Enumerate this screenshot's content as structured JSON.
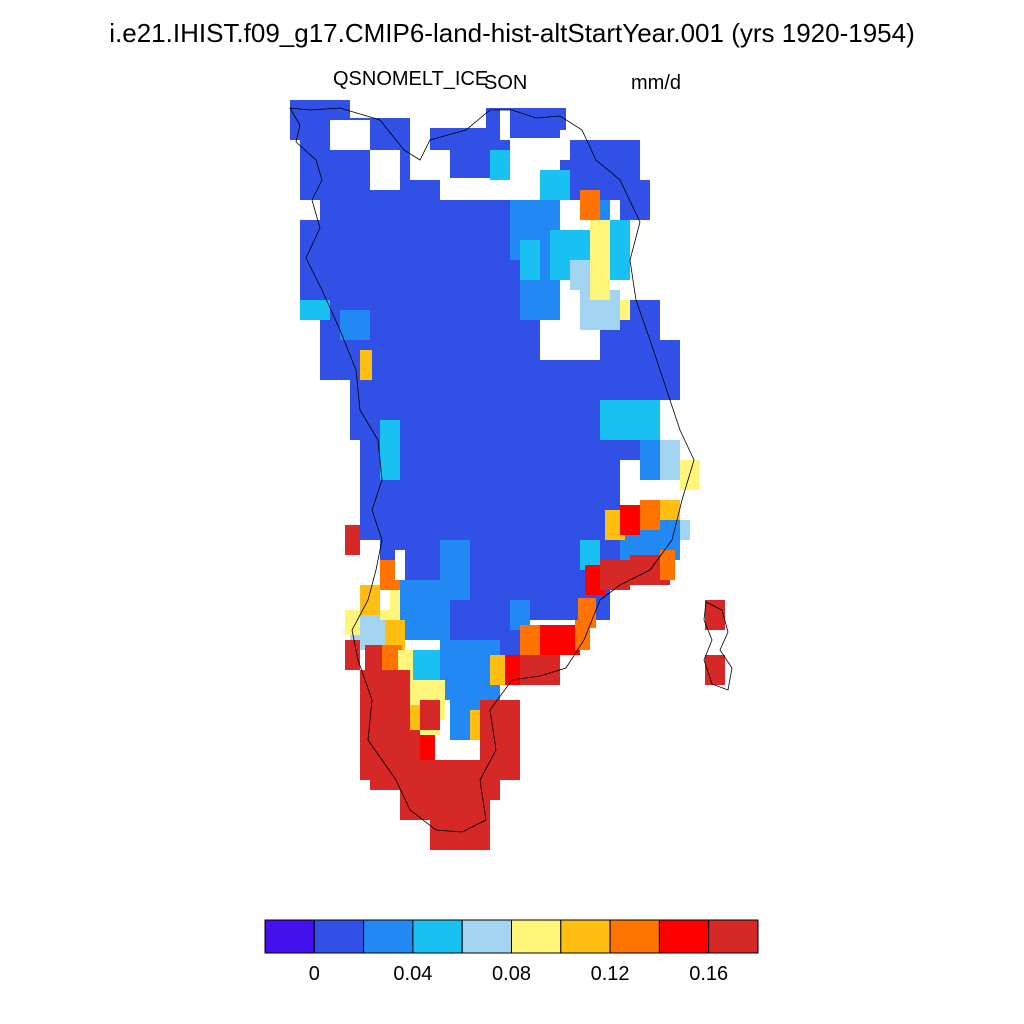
{
  "title": "i.e21.IHIST.f09_g17.CMIP6-land-hist-altStartYear.001 (yrs 1920-1954)",
  "variable": "QSNOMELT_ICE",
  "season": "SON",
  "units": "mm/d",
  "colorbar": {
    "colors": [
      "#4411ee",
      "#3050e6",
      "#2288f4",
      "#19c0f2",
      "#a3d4f2",
      "#fff57a",
      "#ffbe12",
      "#ff7300",
      "#ff0000",
      "#d72828"
    ],
    "tick_labels": [
      "0",
      "0.04",
      "0.08",
      "0.12",
      "0.16"
    ]
  },
  "colors": {
    "coastline": "#000000"
  }
}
